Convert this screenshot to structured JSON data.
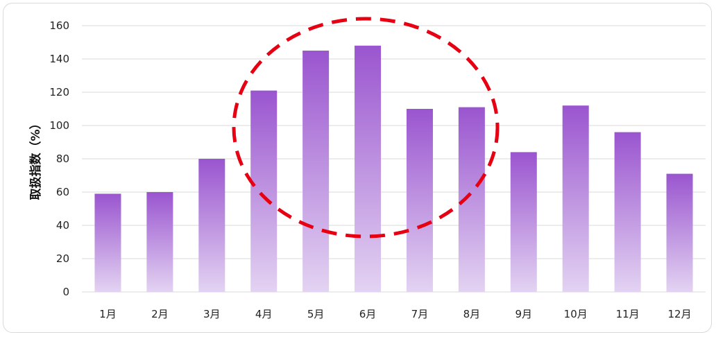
{
  "chart_data": {
    "type": "bar",
    "categories": [
      "1月",
      "2月",
      "3月",
      "4月",
      "5月",
      "6月",
      "7月",
      "8月",
      "9月",
      "10月",
      "11月",
      "12月"
    ],
    "values": [
      59,
      60,
      80,
      121,
      145,
      148,
      110,
      111,
      84,
      112,
      96,
      71
    ],
    "ylabel": "取扱指数（%）",
    "xlabel": "",
    "ylim": [
      0,
      160
    ],
    "yticks": [
      0,
      20,
      40,
      60,
      80,
      100,
      120,
      140,
      160
    ],
    "grid": true,
    "legend": "none",
    "colors": {
      "bar_top": "#9a55cf",
      "bar_bottom": "#e3d3f2",
      "grid": "#d9d9d9",
      "highlight": "#e60012"
    },
    "highlight": {
      "shape": "dashed-ellipse",
      "categories": [
        "4月",
        "5月",
        "6月",
        "7月",
        "8月"
      ]
    }
  }
}
